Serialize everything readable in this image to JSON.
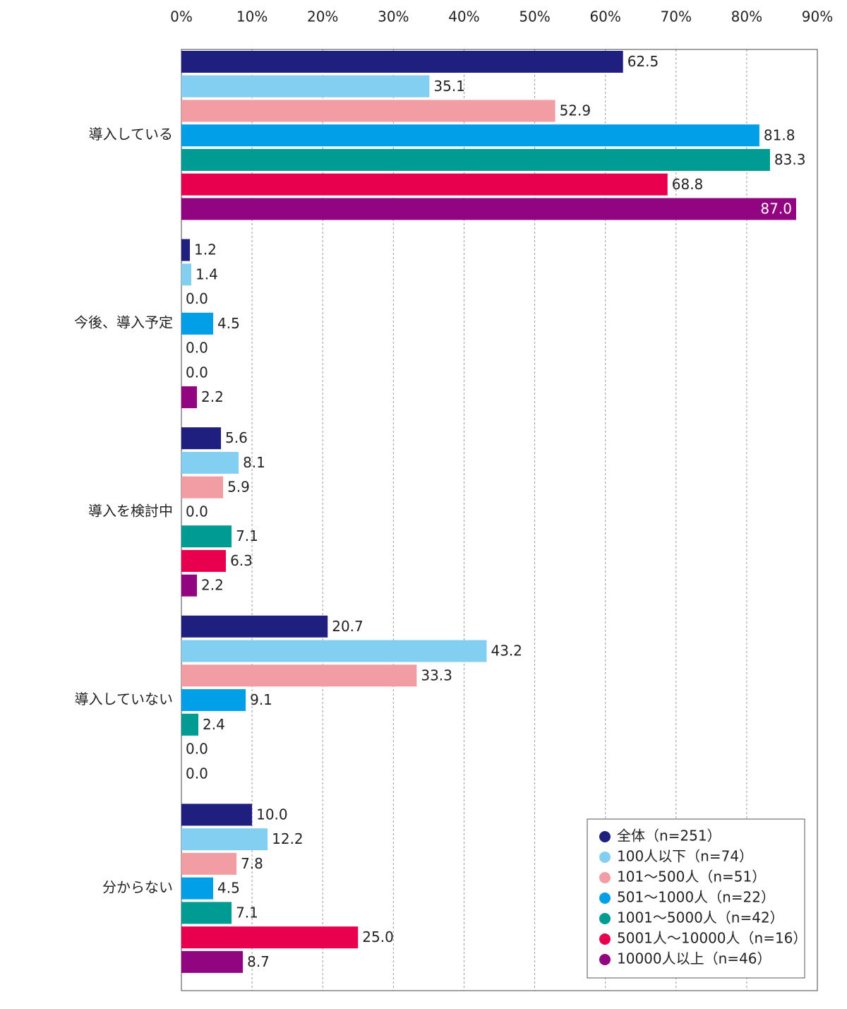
{
  "chart_data": {
    "type": "bar",
    "orientation": "horizontal",
    "categories": [
      "導入している",
      "今後、導入予定",
      "導入を検討中",
      "導入していない",
      "分からない"
    ],
    "xlim": [
      0,
      90
    ],
    "xticks": [
      {
        "value": 0,
        "label": "0%"
      },
      {
        "value": 10,
        "label": "10%"
      },
      {
        "value": 20,
        "label": "20%"
      },
      {
        "value": 30,
        "label": "30%"
      },
      {
        "value": 40,
        "label": "40%"
      },
      {
        "value": 50,
        "label": "50%"
      },
      {
        "value": 60,
        "label": "60%"
      },
      {
        "value": 70,
        "label": "70%"
      },
      {
        "value": 80,
        "label": "80%"
      },
      {
        "value": 90,
        "label": "90%"
      }
    ],
    "grid": true,
    "legend": "lower right",
    "series": [
      {
        "name": "全体（n=251）",
        "color": "#1f1f80",
        "values": [
          62.5,
          1.2,
          5.6,
          20.7,
          10.0
        ],
        "value_labels": [
          "62.5",
          "1.2",
          "5.6",
          "20.7",
          "10.0"
        ]
      },
      {
        "name": "100人以下（n=74）",
        "color": "#82cff2",
        "values": [
          35.1,
          1.4,
          8.1,
          43.2,
          12.2
        ],
        "value_labels": [
          "35.1",
          "1.4",
          "8.1",
          "43.2",
          "12.2"
        ]
      },
      {
        "name": "101～500人（n=51）",
        "color": "#f29ca4",
        "values": [
          52.9,
          0.0,
          5.9,
          33.3,
          7.8
        ],
        "value_labels": [
          "52.9",
          "0.0",
          "5.9",
          "33.3",
          "7.8"
        ]
      },
      {
        "name": "501～1000人（n=22）",
        "color": "#009fe8",
        "values": [
          81.8,
          4.5,
          0.0,
          9.1,
          4.5
        ],
        "value_labels": [
          "81.8",
          "4.5",
          "0.0",
          "9.1",
          "4.5"
        ]
      },
      {
        "name": "1001～5000人（n=42）",
        "color": "#009b93",
        "values": [
          83.3,
          0.0,
          7.1,
          2.4,
          7.1
        ],
        "value_labels": [
          "83.3",
          "0.0",
          "7.1",
          "2.4",
          "7.1"
        ]
      },
      {
        "name": "5001人～10000人（n=16）",
        "color": "#e8004f",
        "values": [
          68.8,
          0.0,
          6.3,
          0.0,
          25.0
        ],
        "value_labels": [
          "68.8",
          "0.0",
          "6.3",
          "0.0",
          "25.0"
        ]
      },
      {
        "name": "10000人以上（n=46）",
        "color": "#920580",
        "values": [
          87.0,
          2.2,
          2.2,
          0.0,
          8.7
        ],
        "value_labels": [
          "87.0",
          "2.2",
          "2.2",
          "0.0",
          "8.7"
        ]
      }
    ]
  }
}
